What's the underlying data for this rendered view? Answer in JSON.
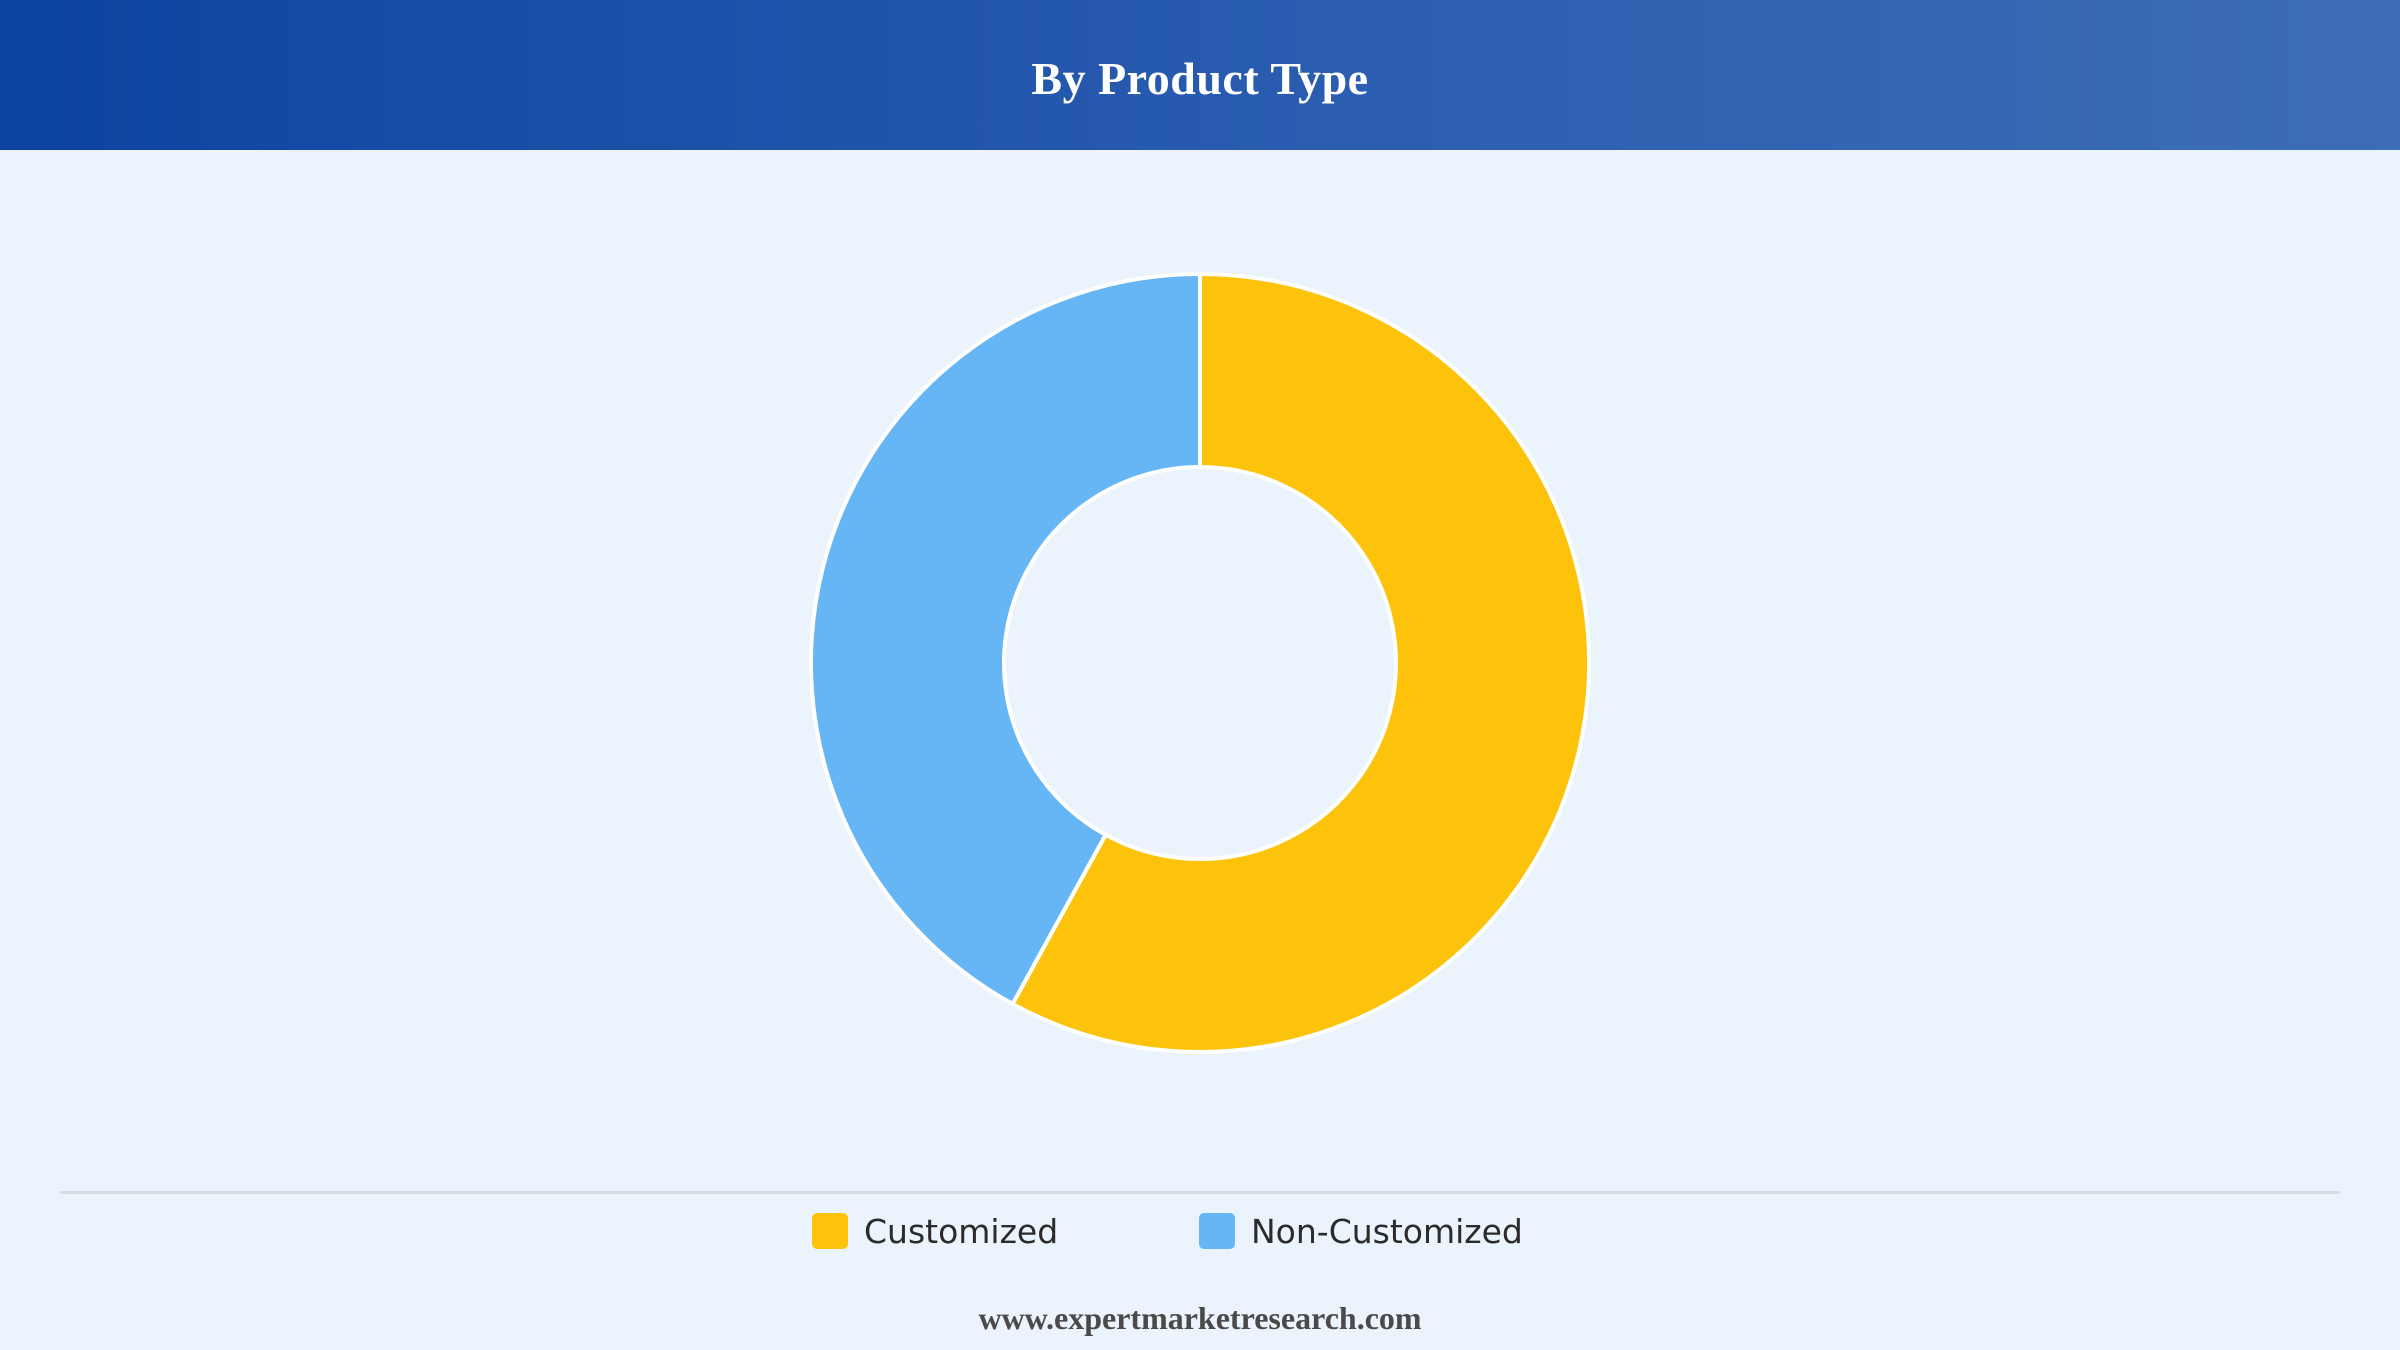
{
  "header": {
    "title": "By Product Type"
  },
  "chart_data": {
    "type": "pie",
    "donut": true,
    "title": "By Product Type",
    "slices": [
      {
        "label": "Customized",
        "value": 58,
        "color": "#fdc20a"
      },
      {
        "label": "Non-Customized",
        "value": 42,
        "color": "#66b6f6"
      }
    ],
    "legend": "bottom-center"
  },
  "legend": {
    "items": [
      {
        "label": "Customized",
        "color": "#fdc20a"
      },
      {
        "label": "Non-Customized",
        "color": "#66b6f6"
      }
    ]
  },
  "footer": {
    "url": "www.expertmarketresearch.com"
  }
}
